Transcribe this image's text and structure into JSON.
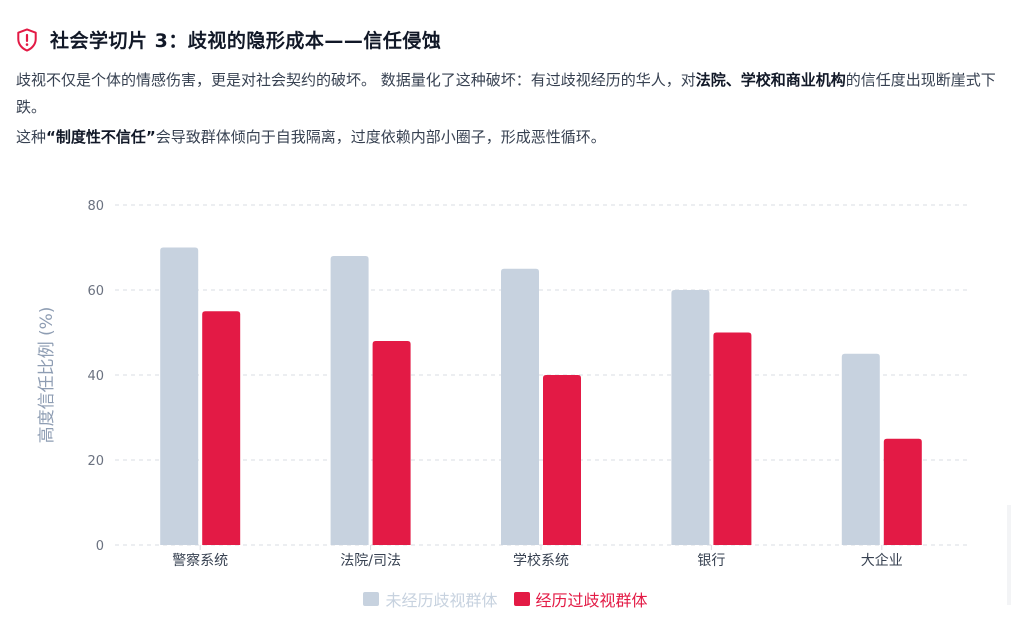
{
  "header": {
    "icon": "shield-alert-icon",
    "title": "社会学切片 3：歧视的隐形成本——信任侵蚀"
  },
  "intro": {
    "p1_a": "歧视不仅是个体的情感伤害，更是对社会契约的破坏。 数据量化了这种破坏：有过歧视经历的华人，对",
    "p1_b": "法院、学校和商业机构",
    "p1_c": "的信任度出现断崖式下跌。",
    "p2_a": "这种",
    "p2_b": "“制度性不信任”",
    "p2_c": "会导致群体倾向于自我隔离，过度依赖内部小圈子，形成恶性循环。"
  },
  "colors": {
    "series1": "#c7d2df",
    "series2": "#e31a45",
    "axis_text": "#6b7280",
    "ylabel": "#8e9db3",
    "grid": "#d9dde3"
  },
  "chart_data": {
    "type": "bar",
    "categories": [
      "警察系统",
      "法院/司法",
      "学校系统",
      "银行",
      "大企业"
    ],
    "series": [
      {
        "name": "未经历歧视群体",
        "values": [
          70,
          68,
          65,
          60,
          45
        ]
      },
      {
        "name": "经历过歧视群体",
        "values": [
          55,
          48,
          40,
          50,
          25
        ]
      }
    ],
    "ylabel": "高度信任比例 (%)",
    "xlabel": "",
    "ylim": [
      0,
      80
    ],
    "yticks": [
      0,
      20,
      40,
      60,
      80
    ],
    "grid": true,
    "legend_position": "bottom"
  }
}
